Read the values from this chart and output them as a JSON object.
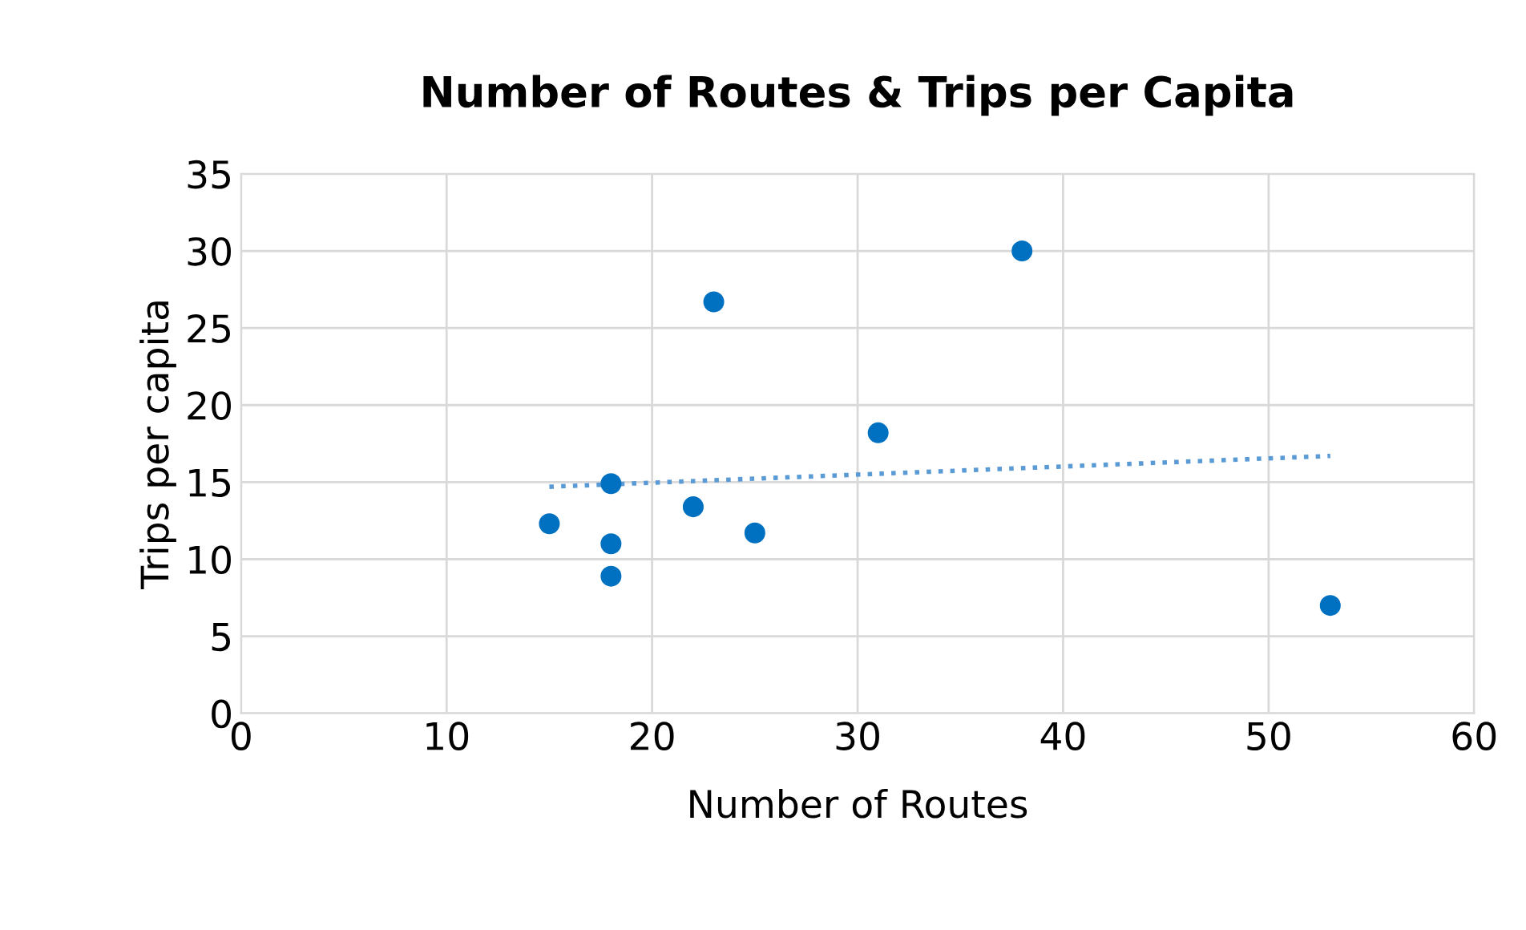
{
  "chart_data": {
    "type": "scatter",
    "title": "Number of Routes & Trips per Capita",
    "xlabel": "Number of Routes",
    "ylabel": "Trips per capita",
    "series": [
      {
        "color": "#0070c0",
        "marker": "circle",
        "x": [
          15,
          18,
          18,
          18,
          22,
          23,
          25,
          31,
          38,
          53
        ],
        "values": [
          12.3,
          14.9,
          11,
          8.9,
          13.4,
          26.7,
          11.7,
          18.2,
          30,
          7
        ]
      },
      {
        "type": "line",
        "color": "#5b9bd5",
        "line_style": "dotted",
        "marker": "none",
        "x": [
          15,
          53
        ],
        "values": [
          14.7,
          16.7
        ]
      }
    ],
    "xlim": [
      0,
      60
    ],
    "xticks": [
      0,
      10,
      20,
      30,
      40,
      50,
      60
    ],
    "ylim": [
      0,
      35
    ],
    "yticks": [
      0,
      5,
      10,
      15,
      20,
      25,
      30,
      35
    ],
    "grid": true
  }
}
